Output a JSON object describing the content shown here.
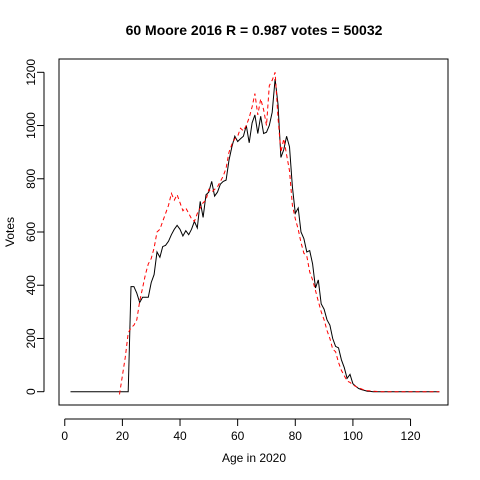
{
  "chart_data": {
    "type": "line",
    "title": "60 Moore 2016 R = 0.987 votes = 50032",
    "xlabel": "Age in 2020",
    "ylabel": "Votes",
    "xlim": [
      -2,
      133
    ],
    "ylim": [
      -50,
      1250
    ],
    "xticks": [
      0,
      20,
      40,
      60,
      80,
      100,
      120
    ],
    "yticks": [
      0,
      200,
      400,
      600,
      800,
      1000,
      1200
    ],
    "grid": false,
    "legend": "none",
    "series": [
      {
        "style": "solid",
        "color": "#000000",
        "x": [
          2,
          21,
          22,
          23,
          24,
          25,
          26,
          27,
          28,
          29,
          30,
          31,
          32,
          33,
          34,
          35,
          36,
          37,
          38,
          39,
          40,
          41,
          42,
          43,
          44,
          45,
          46,
          47,
          48,
          49,
          50,
          51,
          52,
          53,
          54,
          55,
          56,
          57,
          58,
          59,
          60,
          61,
          62,
          63,
          64,
          65,
          66,
          67,
          68,
          69,
          70,
          71,
          72,
          73,
          74,
          75,
          76,
          77,
          78,
          79,
          80,
          81,
          82,
          83,
          84,
          85,
          86,
          87,
          88,
          89,
          90,
          91,
          92,
          93,
          94,
          95,
          96,
          97,
          98,
          99,
          100,
          101,
          102,
          103,
          104,
          105,
          106,
          107,
          108,
          110,
          115,
          120,
          125,
          130
        ],
        "y": [
          0,
          0,
          0,
          395,
          395,
          370,
          335,
          355,
          355,
          355,
          410,
          440,
          525,
          505,
          545,
          550,
          565,
          590,
          610,
          625,
          610,
          585,
          605,
          590,
          610,
          640,
          615,
          715,
          655,
          740,
          750,
          790,
          735,
          750,
          780,
          790,
          795,
          870,
          920,
          960,
          940,
          950,
          960,
          1000,
          935,
          1010,
          1040,
          970,
          1035,
          970,
          975,
          1000,
          1050,
          1175,
          1080,
          880,
          910,
          960,
          920,
          770,
          670,
          690,
          600,
          575,
          525,
          530,
          480,
          390,
          420,
          330,
          310,
          270,
          250,
          200,
          170,
          165,
          120,
          90,
          50,
          65,
          30,
          20,
          12,
          8,
          5,
          2,
          1,
          0,
          0,
          0,
          0,
          0,
          0,
          0
        ]
      },
      {
        "style": "dashed",
        "color": "#ff0000",
        "x": [
          19,
          20,
          21,
          22,
          23,
          24,
          25,
          26,
          27,
          28,
          29,
          30,
          31,
          32,
          33,
          34,
          35,
          36,
          37,
          38,
          39,
          40,
          41,
          42,
          43,
          44,
          45,
          46,
          47,
          48,
          49,
          50,
          51,
          52,
          53,
          54,
          55,
          56,
          57,
          58,
          59,
          60,
          61,
          62,
          63,
          64,
          65,
          66,
          67,
          68,
          69,
          70,
          71,
          72,
          73,
          74,
          75,
          76,
          77,
          78,
          79,
          80,
          81,
          82,
          83,
          84,
          85,
          86,
          87,
          88,
          89,
          90,
          91,
          92,
          93,
          94,
          95,
          96,
          97,
          98,
          99,
          100,
          101,
          102,
          103,
          104,
          105,
          106,
          107,
          108,
          110,
          115,
          120,
          125,
          130
        ],
        "y": [
          -10,
          60,
          130,
          220,
          240,
          250,
          270,
          340,
          390,
          440,
          480,
          500,
          540,
          600,
          610,
          640,
          670,
          700,
          745,
          720,
          740,
          710,
          680,
          690,
          670,
          650,
          640,
          670,
          690,
          710,
          720,
          760,
          750,
          760,
          770,
          790,
          810,
          840,
          900,
          930,
          950,
          960,
          990,
          980,
          1000,
          1030,
          1070,
          1120,
          1040,
          1100,
          1060,
          1000,
          1150,
          1170,
          1200,
          1030,
          900,
          950,
          890,
          830,
          700,
          650,
          610,
          560,
          520,
          510,
          450,
          420,
          380,
          340,
          300,
          270,
          230,
          200,
          160,
          150,
          110,
          80,
          60,
          40,
          35,
          25,
          20,
          15,
          10,
          6,
          4,
          3,
          2,
          1,
          0,
          0,
          0,
          0,
          0
        ]
      }
    ]
  }
}
